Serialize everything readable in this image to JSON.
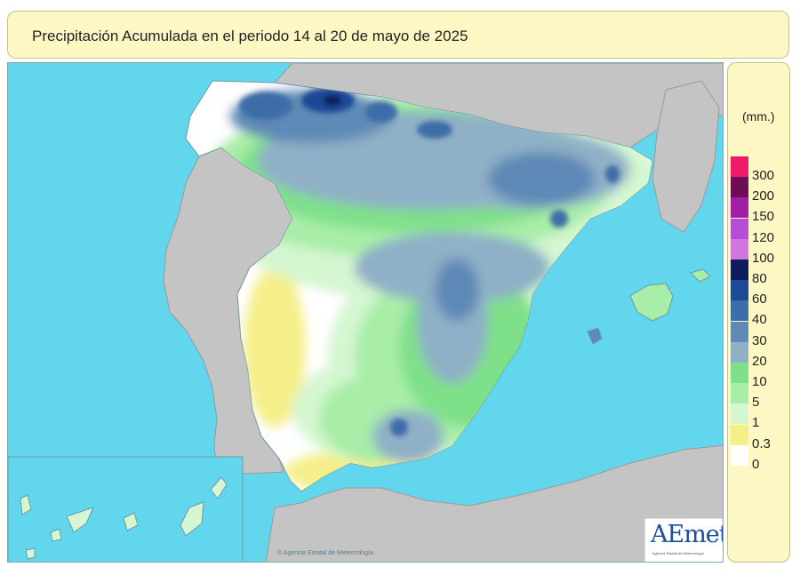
{
  "title": "Precipitación Acumulada en el periodo 14 al 20 de mayo de 2025",
  "legend": {
    "unit": "(mm.)",
    "classes": [
      {
        "label": "300",
        "color": "#f01a6a"
      },
      {
        "label": "200",
        "color": "#6e0c55"
      },
      {
        "label": "150",
        "color": "#a21ea8"
      },
      {
        "label": "120",
        "color": "#b84bd8"
      },
      {
        "label": "100",
        "color": "#d076de"
      },
      {
        "label": "80",
        "color": "#0c1c5c"
      },
      {
        "label": "60",
        "color": "#1d4a96"
      },
      {
        "label": "40",
        "color": "#3e6da8"
      },
      {
        "label": "30",
        "color": "#5f89b6"
      },
      {
        "label": "20",
        "color": "#8fb0c6"
      },
      {
        "label": "10",
        "color": "#7fe08a"
      },
      {
        "label": "5",
        "color": "#a8eda8"
      },
      {
        "label": "1",
        "color": "#d4f6d0"
      },
      {
        "label": "0.3",
        "color": "#f5ef8a"
      },
      {
        "label": "0",
        "color": "#ffffff"
      }
    ]
  },
  "logo": {
    "text": "AEmet",
    "subtitle": "Agencia Estatal de Meteorología"
  },
  "credit": "© Agencia Estatal de Meteorología",
  "colors": {
    "sea": "#62d6ec",
    "land_outside": "#c4c4c4",
    "panel": "#fdf7c4"
  }
}
